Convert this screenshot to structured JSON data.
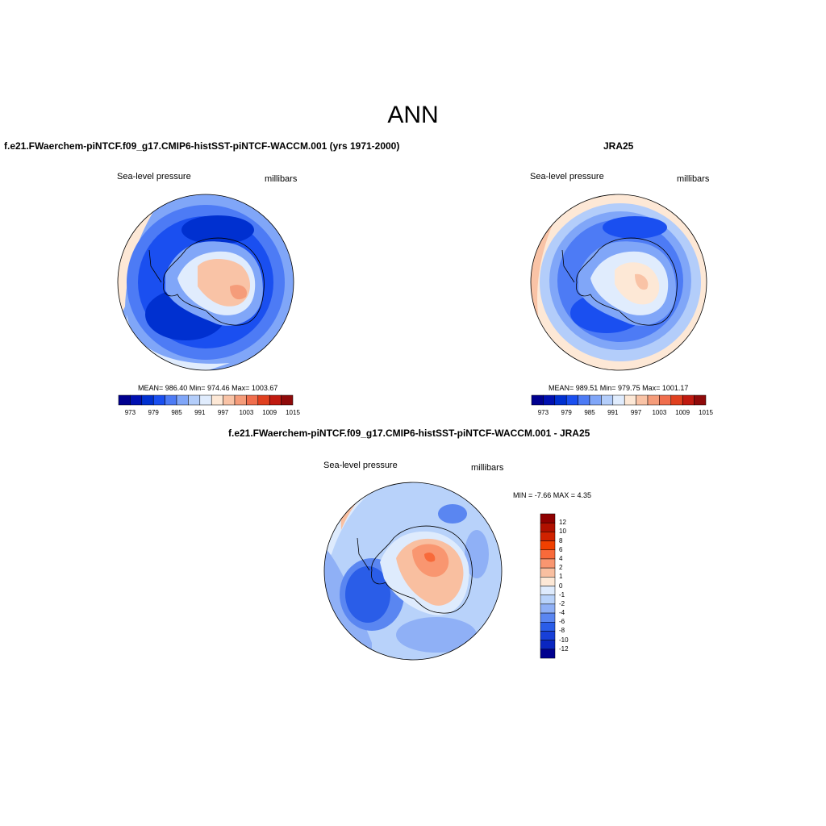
{
  "figure": {
    "title": "ANN"
  },
  "panels": {
    "model": {
      "title": "f.e21.FWaerchem-piNTCF.f09_g17.CMIP6-histSST-piNTCF-WACCM.001 (yrs 1971-2000)",
      "left_label": "Sea-level pressure",
      "right_label": "millibars",
      "stats": "MEAN= 986.40  Min= 974.46  Max= 1003.67"
    },
    "obs": {
      "title": "JRA25",
      "left_label": "Sea-level pressure",
      "right_label": "millibars",
      "stats": "MEAN= 989.51  Min= 979.75  Max= 1001.17"
    },
    "diff": {
      "title": "f.e21.FWaerchem-piNTCF.f09_g17.CMIP6-histSST-piNTCF-WACCM.001 - JRA25",
      "left_label": "Sea-level pressure",
      "right_label": "millibars",
      "stats": "MIN =  -7.66 MAX =   4.35"
    }
  },
  "colorbars": {
    "abs": {
      "colors": [
        "#00008f",
        "#0010b0",
        "#0030d0",
        "#1a4ff0",
        "#4d7bf5",
        "#80a6f8",
        "#b3cdfa",
        "#e0ecfd",
        "#fde8d6",
        "#f9c3a6",
        "#f59c7a",
        "#f06e4d",
        "#e0401f",
        "#c01a10",
        "#8f0a0a"
      ],
      "labels": [
        "973",
        "979",
        "985",
        "991",
        "997",
        "1003",
        "1009",
        "1015"
      ]
    },
    "diff": {
      "colors": [
        "#8f0000",
        "#b01000",
        "#d02200",
        "#f04000",
        "#f86a3a",
        "#f99670",
        "#f9bfa0",
        "#fde8d6",
        "#deebfd",
        "#b8d2fa",
        "#8fb0f6",
        "#5a86f1",
        "#2a5de8",
        "#1840d8",
        "#0a26c0",
        "#00008f"
      ],
      "labels": [
        "12",
        "10",
        "8",
        "6",
        "4",
        "2",
        "1",
        "0",
        "-1",
        "-2",
        "-4",
        "-6",
        "-8",
        "-10",
        "-12"
      ]
    }
  }
}
